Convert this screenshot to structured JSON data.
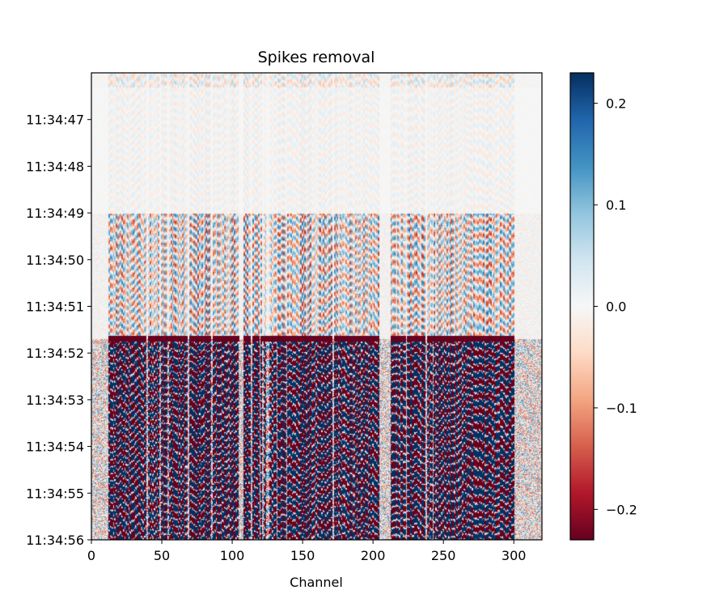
{
  "chart_data": {
    "type": "heatmap",
    "title": "Spikes removal",
    "xlabel": "Channel",
    "ylabel": "",
    "xlim": [
      0,
      320
    ],
    "x_ticks": [
      0,
      50,
      100,
      150,
      200,
      250,
      300
    ],
    "y_ticks": [
      "11:34:47",
      "11:34:48",
      "11:34:49",
      "11:34:50",
      "11:34:51",
      "11:34:52",
      "11:34:53",
      "11:34:54",
      "11:34:55",
      "11:34:56"
    ],
    "y_range": [
      "11:34:46",
      "11:34:56"
    ],
    "y_inverted": true,
    "colormap": "RdBu",
    "colorbar": {
      "vmin": -0.23,
      "vmax": 0.23,
      "ticks": [
        0.2,
        0.1,
        0.0,
        -0.1,
        -0.2
      ],
      "tick_labels": [
        "0.2",
        "0.1",
        "0.0",
        "−0.1",
        "−0.2"
      ]
    },
    "regions": [
      {
        "time_range": [
          "11:34:46",
          "11:34:49"
        ],
        "amplitude": "low"
      },
      {
        "time_range": [
          "11:34:49",
          "11:34:51.7"
        ],
        "amplitude": "moderate"
      },
      {
        "time_range": [
          "11:34:51.7",
          "11:34:56"
        ],
        "amplitude": "high"
      }
    ],
    "dead_channels": [
      [
        0,
        12
      ],
      [
        105,
        108
      ],
      [
        204,
        212
      ],
      [
        300,
        320
      ]
    ],
    "colors": {
      "negative": "#67001f",
      "zero": "#f7f7f7",
      "positive": "#053061"
    }
  }
}
